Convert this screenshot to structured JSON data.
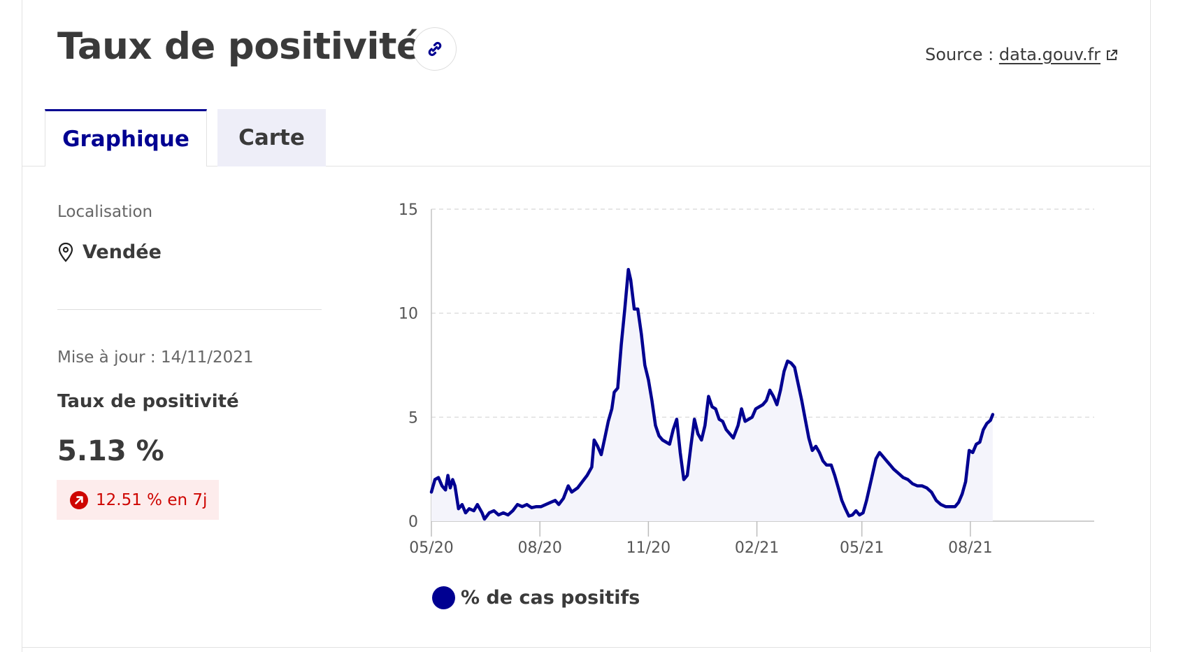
{
  "header": {
    "title": "Taux de positivité",
    "source_label": "Source :",
    "source_link": "data.gouv.fr"
  },
  "tabs": [
    {
      "label": "Graphique",
      "active": true
    },
    {
      "label": "Carte",
      "active": false
    }
  ],
  "sidebar": {
    "location_label": "Localisation",
    "location_value": "Vendée",
    "updated": "Mise à jour : 14/11/2021",
    "indicator_label": "Taux de positivité",
    "indicator_value": "5.13 %",
    "trend_text": "12.51 % en 7j"
  },
  "colors": {
    "accent": "#000091",
    "line": "#000091",
    "area_fill": "#f4f4fb",
    "trend": "#ce0500",
    "trend_bg": "#fdecec"
  },
  "icons": {
    "link": "link-icon",
    "external": "external-link-icon",
    "location": "map-pin-icon",
    "trend": "arrow-up-right-icon"
  },
  "chart_data": {
    "type": "area",
    "title": "",
    "xlabel": "",
    "ylabel": "",
    "x_tick_labels": [
      "05/20",
      "08/20",
      "11/20",
      "02/21",
      "05/21",
      "08/21"
    ],
    "y_tick_labels": [
      "0",
      "5",
      "10",
      "15"
    ],
    "ylim": [
      0,
      15
    ],
    "xlim": [
      "2020-05-01",
      "2021-11-14"
    ],
    "grid": "horizontal-dashed",
    "legend": "bottom",
    "series": [
      {
        "name": "% de cas positifs",
        "points": [
          [
            "2020-05-01",
            1.4
          ],
          [
            "2020-05-04",
            2.0
          ],
          [
            "2020-05-07",
            2.1
          ],
          [
            "2020-05-10",
            1.7
          ],
          [
            "2020-05-13",
            1.5
          ],
          [
            "2020-05-15",
            2.2
          ],
          [
            "2020-05-17",
            1.6
          ],
          [
            "2020-05-19",
            2.0
          ],
          [
            "2020-05-21",
            1.7
          ],
          [
            "2020-05-24",
            0.6
          ],
          [
            "2020-05-27",
            0.8
          ],
          [
            "2020-05-30",
            0.4
          ],
          [
            "2020-06-02",
            0.6
          ],
          [
            "2020-06-06",
            0.5
          ],
          [
            "2020-06-09",
            0.8
          ],
          [
            "2020-06-13",
            0.4
          ],
          [
            "2020-06-15",
            0.1
          ],
          [
            "2020-06-19",
            0.4
          ],
          [
            "2020-06-23",
            0.5
          ],
          [
            "2020-06-27",
            0.3
          ],
          [
            "2020-07-01",
            0.4
          ],
          [
            "2020-07-05",
            0.3
          ],
          [
            "2020-07-09",
            0.5
          ],
          [
            "2020-07-13",
            0.8
          ],
          [
            "2020-07-17",
            0.7
          ],
          [
            "2020-07-21",
            0.8
          ],
          [
            "2020-07-25",
            0.65
          ],
          [
            "2020-07-29",
            0.7
          ],
          [
            "2020-08-02",
            0.7
          ],
          [
            "2020-08-06",
            0.8
          ],
          [
            "2020-08-10",
            0.9
          ],
          [
            "2020-08-14",
            1.0
          ],
          [
            "2020-08-17",
            0.8
          ],
          [
            "2020-08-21",
            1.1
          ],
          [
            "2020-08-25",
            1.7
          ],
          [
            "2020-08-28",
            1.4
          ],
          [
            "2020-09-02",
            1.6
          ],
          [
            "2020-09-06",
            1.9
          ],
          [
            "2020-09-10",
            2.2
          ],
          [
            "2020-09-14",
            2.6
          ],
          [
            "2020-09-16",
            3.9
          ],
          [
            "2020-09-19",
            3.6
          ],
          [
            "2020-09-22",
            3.2
          ],
          [
            "2020-09-25",
            4.0
          ],
          [
            "2020-09-28",
            4.8
          ],
          [
            "2020-10-01",
            5.4
          ],
          [
            "2020-10-03",
            6.2
          ],
          [
            "2020-10-06",
            6.4
          ],
          [
            "2020-10-09",
            8.5
          ],
          [
            "2020-10-12",
            10.2
          ],
          [
            "2020-10-15",
            12.1
          ],
          [
            "2020-10-17",
            11.6
          ],
          [
            "2020-10-20",
            10.2
          ],
          [
            "2020-10-23",
            10.2
          ],
          [
            "2020-10-26",
            9.0
          ],
          [
            "2020-10-29",
            7.5
          ],
          [
            "2020-11-01",
            6.8
          ],
          [
            "2020-11-04",
            5.8
          ],
          [
            "2020-11-07",
            4.6
          ],
          [
            "2020-11-10",
            4.1
          ],
          [
            "2020-11-13",
            3.9
          ],
          [
            "2020-11-16",
            3.8
          ],
          [
            "2020-11-19",
            3.7
          ],
          [
            "2020-11-22",
            4.4
          ],
          [
            "2020-11-25",
            4.9
          ],
          [
            "2020-11-28",
            3.3
          ],
          [
            "2020-12-01",
            2.0
          ],
          [
            "2020-12-04",
            2.2
          ],
          [
            "2020-12-07",
            3.6
          ],
          [
            "2020-12-10",
            4.9
          ],
          [
            "2020-12-13",
            4.2
          ],
          [
            "2020-12-16",
            3.9
          ],
          [
            "2020-12-19",
            4.6
          ],
          [
            "2020-12-22",
            6.0
          ],
          [
            "2020-12-25",
            5.5
          ],
          [
            "2020-12-28",
            5.4
          ],
          [
            "2020-12-31",
            4.9
          ],
          [
            "2021-01-03",
            4.8
          ],
          [
            "2021-01-06",
            4.4
          ],
          [
            "2021-01-09",
            4.2
          ],
          [
            "2021-01-12",
            4.0
          ],
          [
            "2021-01-16",
            4.6
          ],
          [
            "2021-01-19",
            5.4
          ],
          [
            "2021-01-22",
            4.8
          ],
          [
            "2021-01-25",
            4.9
          ],
          [
            "2021-01-28",
            5.0
          ],
          [
            "2021-01-31",
            5.4
          ],
          [
            "2021-02-03",
            5.5
          ],
          [
            "2021-02-06",
            5.6
          ],
          [
            "2021-02-09",
            5.8
          ],
          [
            "2021-02-12",
            6.3
          ],
          [
            "2021-02-15",
            6.0
          ],
          [
            "2021-02-18",
            5.6
          ],
          [
            "2021-02-21",
            6.3
          ],
          [
            "2021-02-24",
            7.2
          ],
          [
            "2021-02-27",
            7.7
          ],
          [
            "2021-03-02",
            7.6
          ],
          [
            "2021-03-05",
            7.4
          ],
          [
            "2021-03-08",
            6.6
          ],
          [
            "2021-03-11",
            5.8
          ],
          [
            "2021-03-14",
            4.9
          ],
          [
            "2021-03-17",
            4.0
          ],
          [
            "2021-03-20",
            3.4
          ],
          [
            "2021-03-23",
            3.6
          ],
          [
            "2021-03-26",
            3.3
          ],
          [
            "2021-03-29",
            2.9
          ],
          [
            "2021-04-01",
            2.7
          ],
          [
            "2021-04-05",
            2.7
          ],
          [
            "2021-04-08",
            2.2
          ],
          [
            "2021-04-11",
            1.6
          ],
          [
            "2021-04-14",
            1.0
          ],
          [
            "2021-04-17",
            0.6
          ],
          [
            "2021-04-20",
            0.25
          ],
          [
            "2021-04-23",
            0.3
          ],
          [
            "2021-04-26",
            0.5
          ],
          [
            "2021-04-29",
            0.3
          ],
          [
            "2021-05-02",
            0.4
          ],
          [
            "2021-05-05",
            1.0
          ],
          [
            "2021-05-09",
            2.0
          ],
          [
            "2021-05-13",
            3.0
          ],
          [
            "2021-05-16",
            3.3
          ],
          [
            "2021-05-19",
            3.1
          ],
          [
            "2021-05-22",
            2.9
          ],
          [
            "2021-05-25",
            2.7
          ],
          [
            "2021-05-28",
            2.5
          ],
          [
            "2021-06-01",
            2.3
          ],
          [
            "2021-06-05",
            2.1
          ],
          [
            "2021-06-09",
            2.0
          ],
          [
            "2021-06-13",
            1.8
          ],
          [
            "2021-06-17",
            1.7
          ],
          [
            "2021-06-21",
            1.7
          ],
          [
            "2021-06-25",
            1.6
          ],
          [
            "2021-06-29",
            1.4
          ],
          [
            "2021-07-03",
            1.0
          ],
          [
            "2021-07-07",
            0.8
          ],
          [
            "2021-07-11",
            0.7
          ],
          [
            "2021-07-15",
            0.7
          ],
          [
            "2021-07-19",
            0.7
          ],
          [
            "2021-07-22",
            0.9
          ],
          [
            "2021-07-25",
            1.3
          ],
          [
            "2021-07-28",
            1.9
          ],
          [
            "2021-07-31",
            3.4
          ],
          [
            "2021-08-03",
            3.3
          ],
          [
            "2021-08-06",
            3.7
          ],
          [
            "2021-08-09",
            3.8
          ],
          [
            "2021-08-12",
            4.4
          ],
          [
            "2021-08-15",
            4.7
          ],
          [
            "2021-08-18",
            4.85
          ],
          [
            "2021-08-20",
            5.13
          ]
        ]
      }
    ]
  }
}
